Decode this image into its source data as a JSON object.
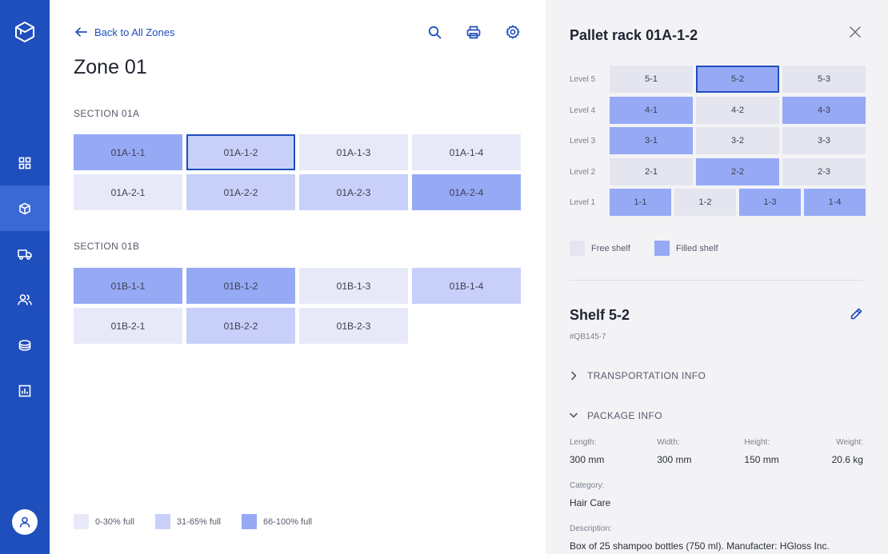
{
  "main": {
    "back_label": "Back to All Zones",
    "title": "Zone 01",
    "sections": [
      {
        "title": "SECTION 01A",
        "cells": [
          {
            "label": "01A-1-1",
            "level": 3
          },
          {
            "label": "01A-1-2",
            "level": 2,
            "selected": true
          },
          {
            "label": "01A-1-3",
            "level": 1
          },
          {
            "label": "01A-1-4",
            "level": 1
          },
          {
            "label": "01A-2-1",
            "level": 1
          },
          {
            "label": "01A-2-2",
            "level": 2
          },
          {
            "label": "01A-2-3",
            "level": 2
          },
          {
            "label": "01A-2-4",
            "level": 3
          }
        ]
      },
      {
        "title": "SECTION 01B",
        "cells": [
          {
            "label": "01B-1-1",
            "level": 3
          },
          {
            "label": "01B-1-2",
            "level": 3
          },
          {
            "label": "01B-1-3",
            "level": 1
          },
          {
            "label": "01B-1-4",
            "level": 2
          },
          {
            "label": "01B-2-1",
            "level": 1
          },
          {
            "label": "01B-2-2",
            "level": 2
          },
          {
            "label": "01B-2-3",
            "level": 1
          }
        ]
      }
    ],
    "legend": [
      {
        "label": "0-30% full",
        "color": "#e8e9f8"
      },
      {
        "label": "31-65% full",
        "color": "#c8d0fa"
      },
      {
        "label": "66-100% full",
        "color": "#96a9f5"
      }
    ]
  },
  "panel": {
    "title": "Pallet rack 01A-1-2",
    "rack": [
      {
        "label": "Level 5",
        "cells": [
          {
            "label": "5-1",
            "filled": false
          },
          {
            "label": "5-2",
            "filled": true,
            "selected": true
          },
          {
            "label": "5-3",
            "filled": false
          }
        ]
      },
      {
        "label": "Level 4",
        "cells": [
          {
            "label": "4-1",
            "filled": true
          },
          {
            "label": "4-2",
            "filled": false
          },
          {
            "label": "4-3",
            "filled": true
          }
        ]
      },
      {
        "label": "Level 3",
        "cells": [
          {
            "label": "3-1",
            "filled": true
          },
          {
            "label": "3-2",
            "filled": false
          },
          {
            "label": "3-3",
            "filled": false
          }
        ]
      },
      {
        "label": "Level 2",
        "cells": [
          {
            "label": "2-1",
            "filled": false
          },
          {
            "label": "2-2",
            "filled": true
          },
          {
            "label": "2-3",
            "filled": false
          }
        ]
      },
      {
        "label": "Level 1",
        "cells": [
          {
            "label": "1-1",
            "filled": true
          },
          {
            "label": "1-2",
            "filled": false
          },
          {
            "label": "1-3",
            "filled": true
          },
          {
            "label": "1-4",
            "filled": true
          }
        ]
      }
    ],
    "legend": {
      "free_label": "Free shelf",
      "filled_label": "Filled shelf",
      "free_color": "#e4e5ee",
      "filled_color": "#96a9f5"
    },
    "shelf": {
      "title": "Shelf 5-2",
      "code": "#QB145-7",
      "transport_label": "TRANSPORTATION INFO",
      "package_label": "PACKAGE INFO",
      "dimensions": [
        {
          "label": "Length:",
          "value": "300 mm"
        },
        {
          "label": "Width:",
          "value": "300 mm"
        },
        {
          "label": "Height:",
          "value": "150 mm"
        },
        {
          "label": "Weight:",
          "value": "20.6 kg"
        }
      ],
      "category_label": "Category:",
      "category_value": "Hair Care",
      "description_label": "Description:",
      "description_value": "Box of 25 shampoo bottles (750 ml). Manufacter: HGloss Inc."
    }
  },
  "colors": {
    "sidebar": "#1f4ebd",
    "accent": "#1f4ebd"
  },
  "icons": [
    "logo-cube-icon",
    "dashboard-grid-icon",
    "box-icon",
    "truck-icon",
    "users-icon",
    "coins-icon",
    "chart-icon",
    "user-icon",
    "arrow-left-icon",
    "search-icon",
    "print-icon",
    "gear-icon",
    "close-icon",
    "pencil-icon",
    "chevron-right-icon",
    "chevron-down-icon"
  ]
}
